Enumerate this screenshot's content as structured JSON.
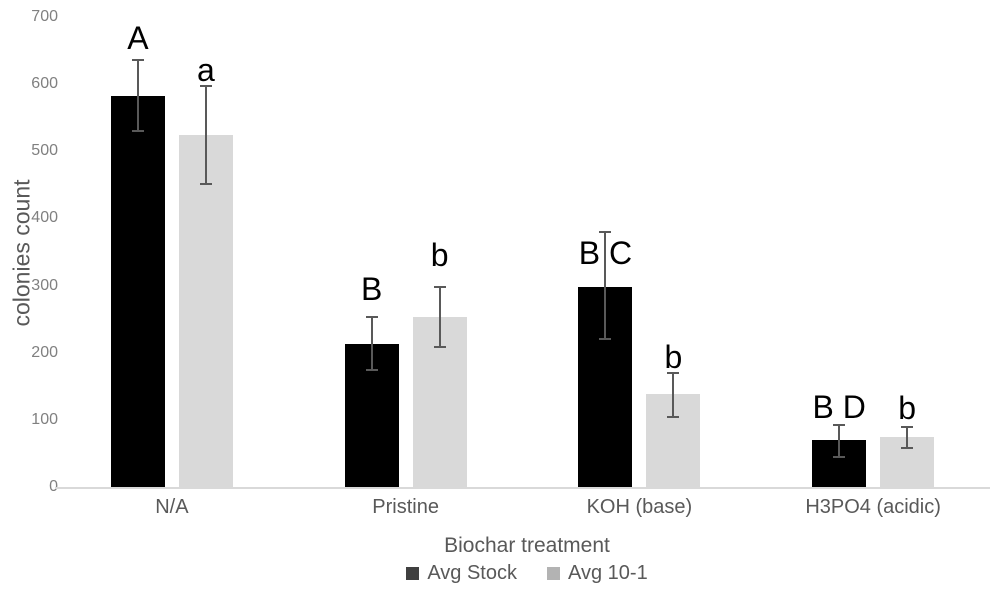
{
  "chart_data": {
    "type": "bar",
    "title": "",
    "xlabel": "Biochar treatment",
    "ylabel": "colonies count",
    "ylim": [
      0,
      700
    ],
    "ytick_step": 100,
    "grid": false,
    "legend_position": "bottom",
    "categories": [
      "N/A",
      "Pristine",
      "KOH (base)",
      "H3PO4 (acidic)"
    ],
    "series": [
      {
        "name": "Avg Stock",
        "color": "#000000",
        "legend_color": "#404040",
        "values": [
          583,
          213,
          298,
          70
        ],
        "error_low": [
          530,
          175,
          220,
          45
        ],
        "error_high": [
          636,
          253,
          380,
          93
        ],
        "annotations": [
          {
            "text": "A",
            "y": 669
          },
          {
            "text": "B",
            "y": 295
          },
          {
            "text": "B C",
            "y": 348
          },
          {
            "text": "B D",
            "y": 119
          }
        ]
      },
      {
        "name": "Avg 10-1",
        "color": "#d9d9d9",
        "legend_color": "#b3b3b3",
        "values": [
          524,
          253,
          138,
          75
        ],
        "error_low": [
          452,
          208,
          105,
          58
        ],
        "error_high": [
          597,
          298,
          170,
          90
        ],
        "annotations": [
          {
            "text": "a",
            "y": 621
          },
          {
            "text": "b",
            "y": 345
          },
          {
            "text": "b",
            "y": 194
          },
          {
            "text": "b",
            "y": 118
          }
        ]
      }
    ],
    "colors": {
      "axis_line": "#d9d9d9",
      "error_bar": "#595959",
      "tick_label": "#808080",
      "axis_title": "#595959",
      "category_label": "#595959",
      "legend_text": "#595959",
      "annotation": "#000000",
      "background": "#ffffff"
    }
  }
}
